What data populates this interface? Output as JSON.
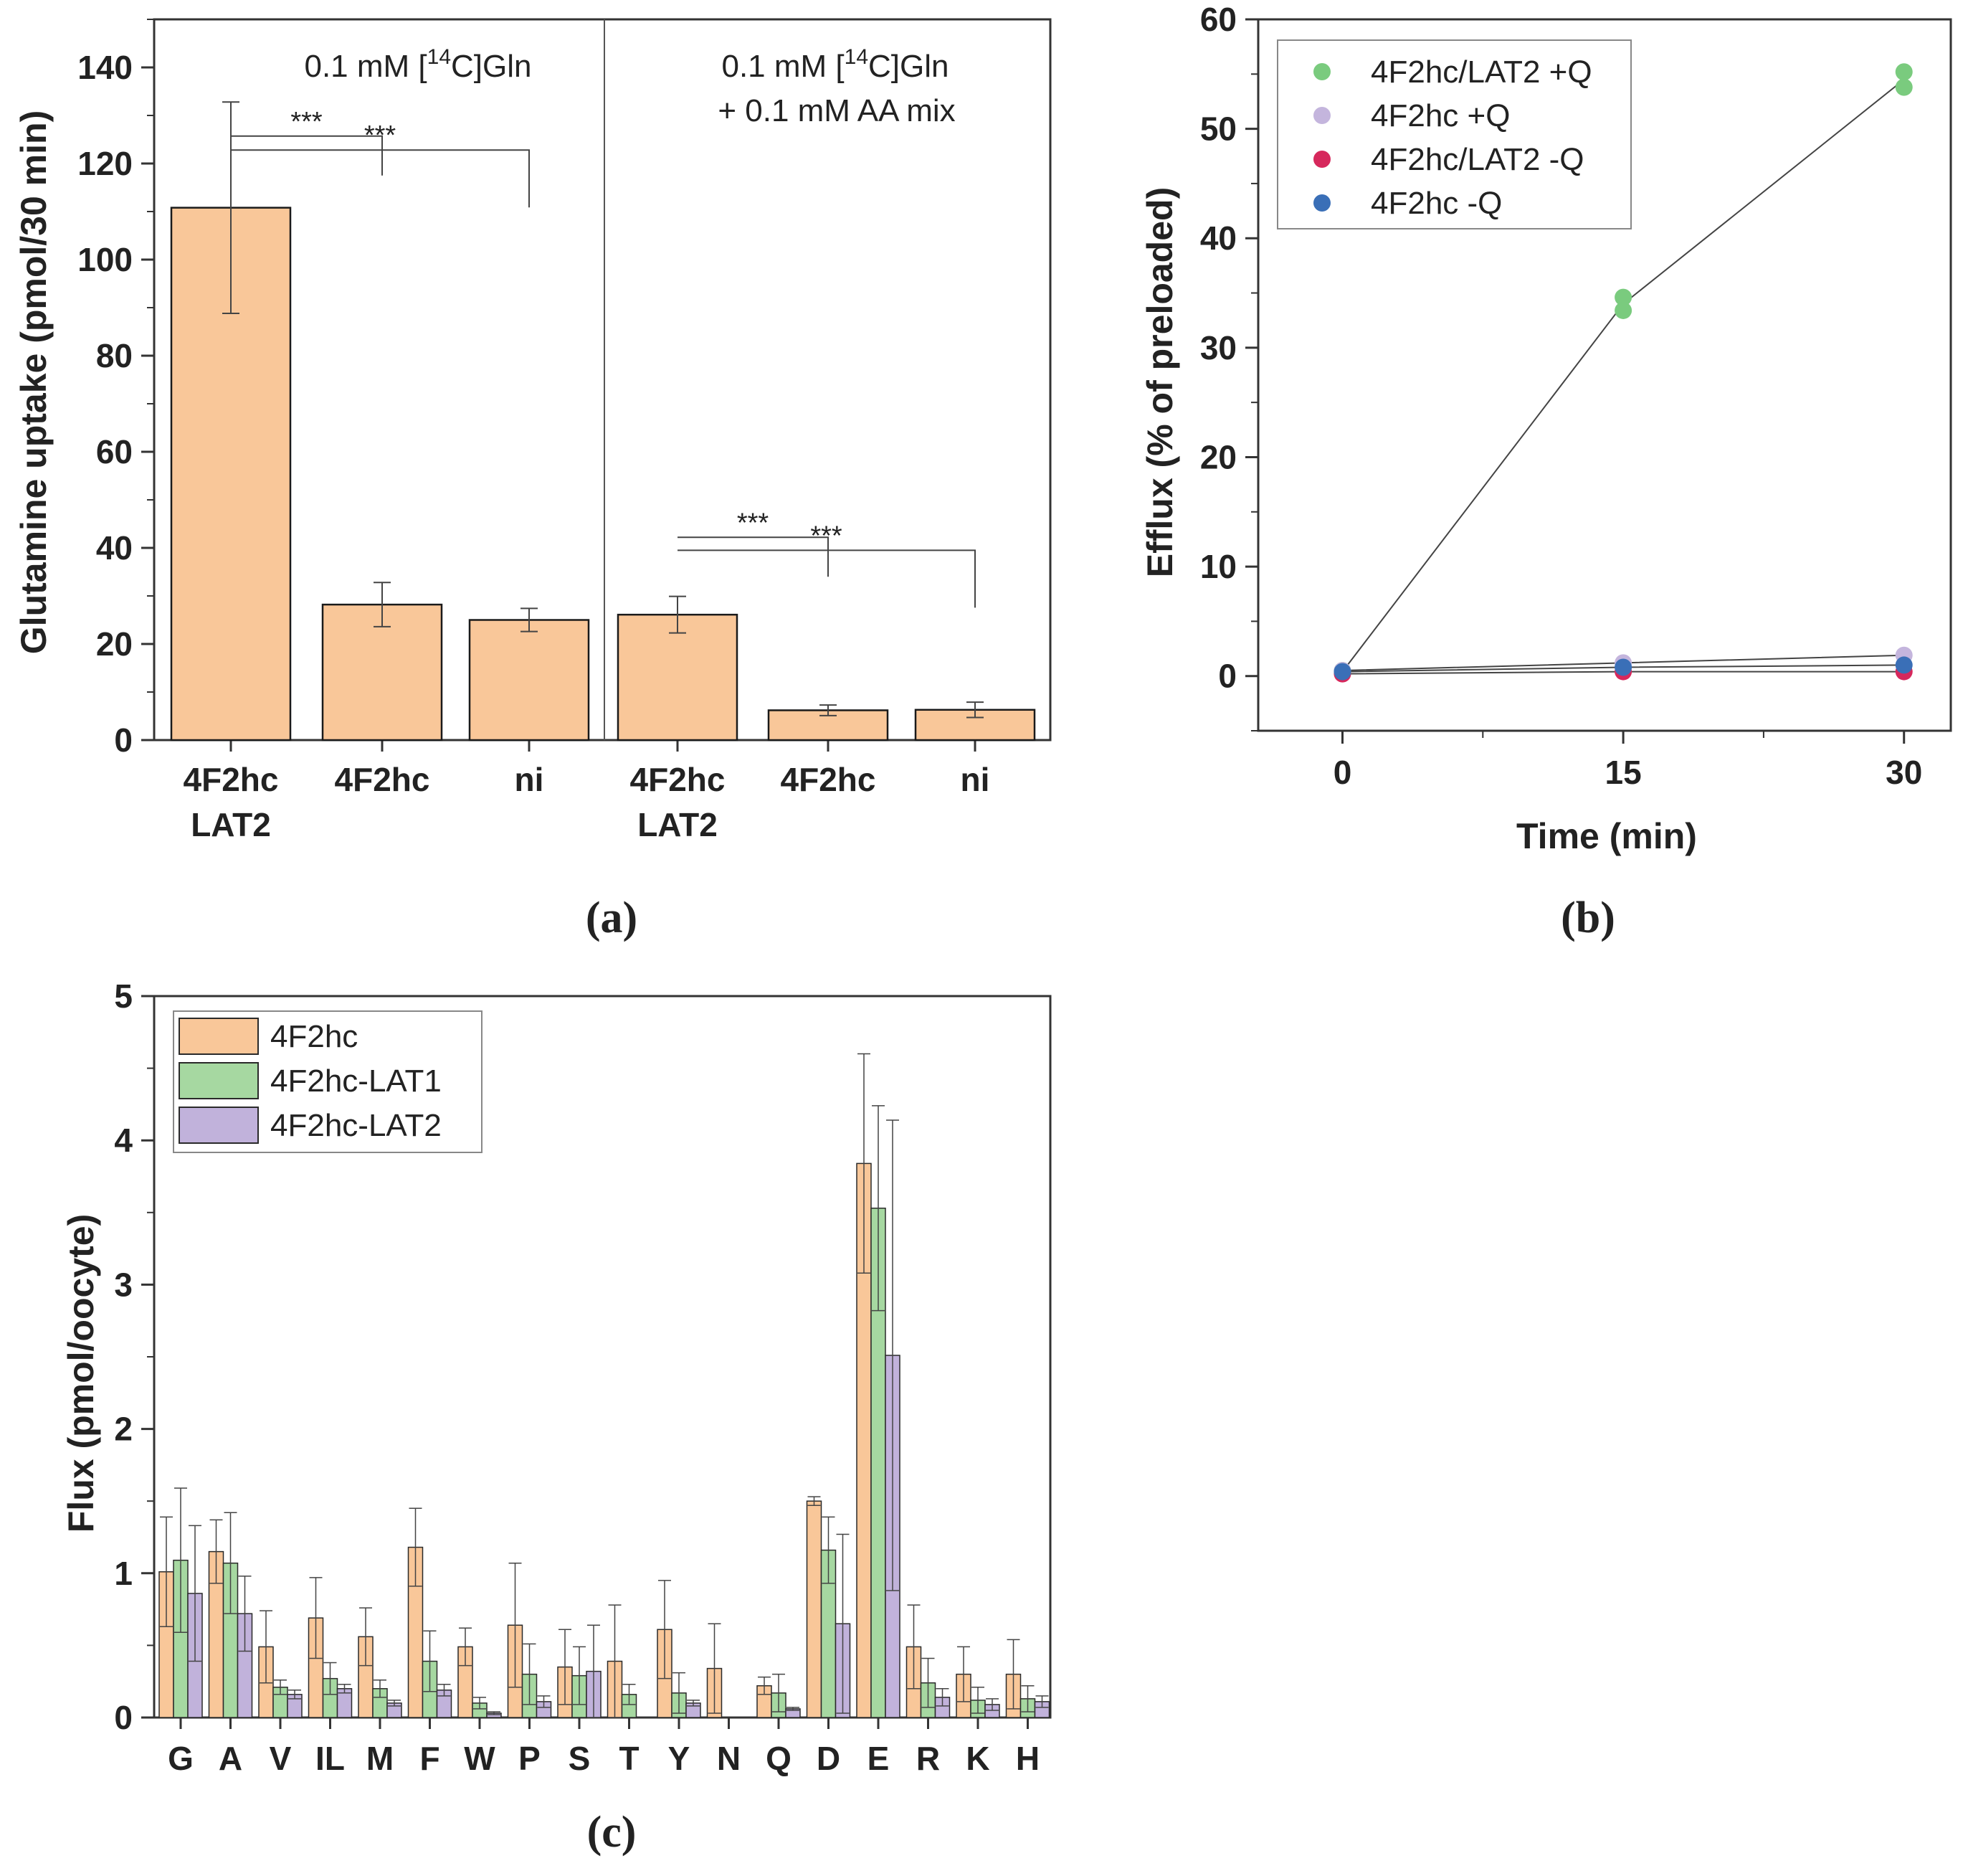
{
  "chart_data": [
    {
      "panel": "(a)",
      "type": "bar",
      "ylabel": "Glutamine uptake (pmol/30 min)",
      "ylim": [
        0,
        150
      ],
      "yticks": [
        0,
        20,
        40,
        60,
        80,
        100,
        120,
        140
      ],
      "condition_labels": [
        {
          "pre": "0.1 mM [",
          "sup": "14",
          "post": "C]Gln",
          "line2": ""
        },
        {
          "pre": "0.1 mM [",
          "sup": "14",
          "post": "C]Gln",
          "line2": "+ 0.1 mM AA mix"
        }
      ],
      "bars": [
        {
          "label": [
            "4F2hc",
            "LAT2"
          ],
          "value": 110.8,
          "err": 22.0
        },
        {
          "label": [
            "4F2hc"
          ],
          "value": 28.2,
          "err": 4.6
        },
        {
          "label": [
            "ni"
          ],
          "value": 25.0,
          "err": 2.4
        },
        {
          "label": [
            "4F2hc",
            "LAT2"
          ],
          "value": 26.1,
          "err": 3.8
        },
        {
          "label": [
            "4F2hc"
          ],
          "value": 6.2,
          "err": 1.1
        },
        {
          "label": [
            "ni"
          ],
          "value": 6.3,
          "err": 1.6
        }
      ],
      "significance": [
        {
          "from": 0,
          "to": 1,
          "y": 125.7,
          "label": "***"
        },
        {
          "from": 0,
          "to": 2,
          "y": 122.8,
          "label": "***"
        },
        {
          "from": 3,
          "to": 4,
          "y": 42.2,
          "label": "***"
        },
        {
          "from": 3,
          "to": 5,
          "y": 39.5,
          "label": "***"
        }
      ],
      "bar_color": "#F9C799"
    },
    {
      "panel": "(b)",
      "type": "scatter",
      "xlabel": "Time (min)",
      "ylabel": "Efflux (% of preloaded)",
      "xlim": [
        -4.5,
        32.5
      ],
      "ylim": [
        -5,
        60
      ],
      "xticks": [
        0,
        15,
        30
      ],
      "yticks": [
        0,
        10,
        20,
        30,
        40,
        50,
        60
      ],
      "series": [
        {
          "name": "4F2hc/LAT2 +Q",
          "color": "#7ACB7E",
          "x": [
            0,
            0,
            15,
            15,
            30,
            30
          ],
          "y": [
            0.3,
            0.5,
            34.6,
            33.4,
            55.2,
            53.8
          ],
          "line_x": [
            0,
            15,
            30
          ],
          "line_y": [
            0.4,
            34.0,
            54.5
          ]
        },
        {
          "name": "4F2hc +Q",
          "color": "#C4B5DD",
          "x": [
            0,
            15,
            30
          ],
          "y": [
            0.5,
            1.2,
            1.9
          ],
          "line_x": [
            0,
            15,
            30
          ],
          "line_y": [
            0.5,
            1.2,
            1.9
          ]
        },
        {
          "name": "4F2hc/LAT2 -Q",
          "color": "#D6285C",
          "x": [
            0,
            15,
            30
          ],
          "y": [
            0.2,
            0.4,
            0.4
          ],
          "line_x": [
            0,
            15,
            30
          ],
          "line_y": [
            0.2,
            0.4,
            0.4
          ]
        },
        {
          "name": "4F2hc -Q",
          "color": "#3A6FB7",
          "x": [
            0,
            15,
            30
          ],
          "y": [
            0.4,
            0.8,
            1.0
          ],
          "line_x": [
            0,
            15,
            30
          ],
          "line_y": [
            0.4,
            0.8,
            1.0
          ]
        }
      ]
    },
    {
      "panel": "(c)",
      "type": "bar",
      "ylabel": "Flux (pmol/oocyte)",
      "ylim": [
        0,
        5
      ],
      "yticks": [
        0,
        1,
        2,
        3,
        4,
        5
      ],
      "categories": [
        "G",
        "A",
        "V",
        "IL",
        "M",
        "F",
        "W",
        "P",
        "S",
        "T",
        "Y",
        "N",
        "Q",
        "D",
        "E",
        "R",
        "K",
        "H"
      ],
      "series": [
        {
          "name": "4F2hc",
          "color": "#F9C799",
          "values": [
            1.01,
            1.15,
            0.49,
            0.69,
            0.56,
            1.18,
            0.49,
            0.64,
            0.35,
            0.39,
            0.61,
            0.34,
            0.22,
            1.5,
            3.84,
            0.49,
            0.3,
            0.3
          ],
          "err": [
            0.38,
            0.22,
            0.25,
            0.28,
            0.2,
            0.27,
            0.13,
            0.43,
            0.26,
            0.39,
            0.34,
            0.31,
            0.06,
            0.03,
            0.76,
            0.29,
            0.19,
            0.24
          ]
        },
        {
          "name": "4F2hc-LAT1",
          "color": "#A6D8A1",
          "values": [
            1.09,
            1.07,
            0.21,
            0.27,
            0.2,
            0.39,
            0.1,
            0.3,
            0.29,
            0.16,
            0.17,
            0.0,
            0.17,
            1.16,
            3.53,
            0.24,
            0.12,
            0.13
          ],
          "err": [
            0.5,
            0.35,
            0.05,
            0.11,
            0.06,
            0.21,
            0.04,
            0.21,
            0.2,
            0.07,
            0.14,
            0.0,
            0.13,
            0.23,
            0.71,
            0.17,
            0.09,
            0.09
          ]
        },
        {
          "name": "4F2hc-LAT2",
          "color": "#C1B2DB",
          "values": [
            0.86,
            0.72,
            0.16,
            0.2,
            0.1,
            0.19,
            0.03,
            0.11,
            0.32,
            0.0,
            0.1,
            0.0,
            0.06,
            0.65,
            2.51,
            0.14,
            0.09,
            0.11
          ],
          "err": [
            0.47,
            0.26,
            0.03,
            0.03,
            0.02,
            0.04,
            0.01,
            0.04,
            0.32,
            0.0,
            0.02,
            0.0,
            0.01,
            0.62,
            1.63,
            0.06,
            0.04,
            0.04
          ]
        }
      ]
    }
  ]
}
